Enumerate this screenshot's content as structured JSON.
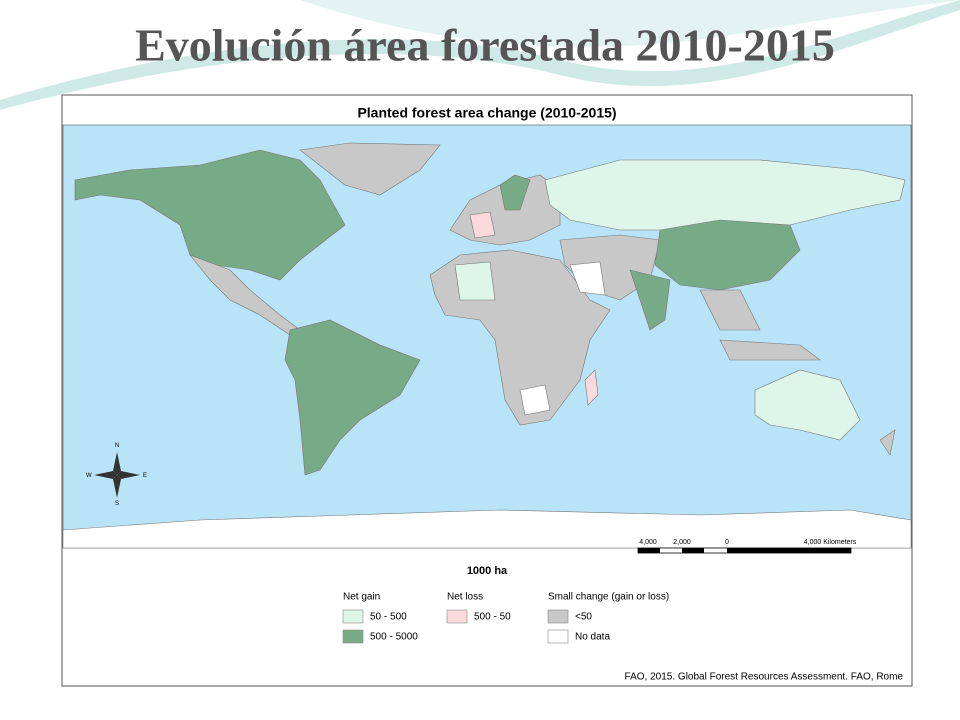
{
  "slide_title": "Evolución  área forestada 2010-2015",
  "map": {
    "title": "Planted forest area change (2010-2015)",
    "compass": {
      "n": "N",
      "s": "S",
      "e": "E",
      "w": "W"
    },
    "scale_bar": {
      "labels": [
        "4,000",
        "2,000",
        "0",
        "4,000 Kilometers"
      ]
    },
    "unit": "1000 ha",
    "legend": [
      {
        "heading": "Net gain",
        "items": [
          {
            "label": "50 - 500",
            "color": "#def5ea"
          },
          {
            "label": "500 - 5000",
            "color": "#77aa86"
          }
        ]
      },
      {
        "heading": "Net loss",
        "items": [
          {
            "label": "500 - 50",
            "color": "#fadadd"
          }
        ]
      },
      {
        "heading": "Small change (gain or loss)",
        "items": [
          {
            "label": "<50",
            "color": "#c8c8c8"
          },
          {
            "label": "No data",
            "color": "#ffffff"
          }
        ]
      }
    ],
    "source": "FAO, 2015. Global Forest Resources Assessment. FAO, Rome"
  }
}
